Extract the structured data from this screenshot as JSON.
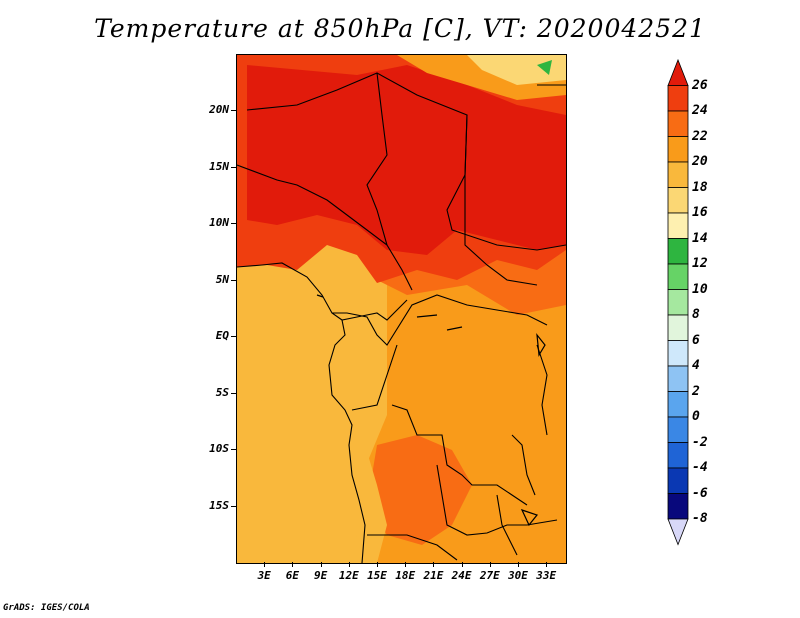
{
  "title": "Temperature at 850hPa [C], VT: 2020042521",
  "credit": "GrADS: IGES/COLA",
  "map": {
    "variable": "Temperature at 850hPa",
    "units": "C",
    "valid_time": "2020042521",
    "lat_range": [
      -20,
      25
    ],
    "lon_range": [
      0,
      35
    ],
    "lat_labels": [
      "20N",
      "15N",
      "10N",
      "5N",
      "EQ",
      "5S",
      "10S",
      "15S"
    ],
    "lon_labels": [
      "3E",
      "6E",
      "9E",
      "12E",
      "15E",
      "18E",
      "21E",
      "24E",
      "27E",
      "30E",
      "33E"
    ]
  },
  "colorbar": {
    "labels": [
      "26",
      "24",
      "22",
      "20",
      "18",
      "16",
      "14",
      "12",
      "10",
      "8",
      "6",
      "4",
      "2",
      "0",
      "-2",
      "-4",
      "-6",
      "-8"
    ],
    "colors_top_to_bottom": [
      "#e11b0b",
      "#ef3e0f",
      "#f86c14",
      "#f99b1a",
      "#f9b83c",
      "#fbd774",
      "#fef0b0",
      "#2eb540",
      "#66d366",
      "#a5e89f",
      "#e1f5dc",
      "#cfe8fb",
      "#8ec3f3",
      "#5aa5ee",
      "#3a87e5",
      "#1f64d6",
      "#0a38b3",
      "#08087c",
      "#d8d8f8"
    ]
  }
}
